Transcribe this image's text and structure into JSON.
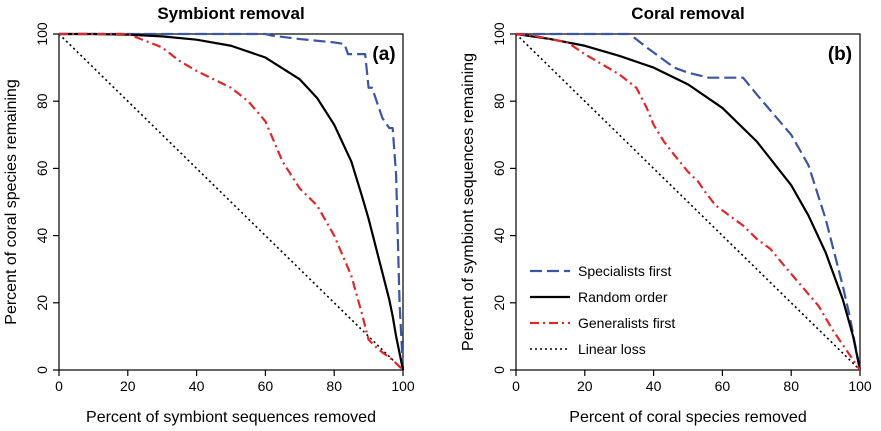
{
  "chart_data": [
    {
      "type": "line",
      "title": "Symbiont removal",
      "panel_label": "(a)",
      "xlabel": "Percent of symbiont sequences removed",
      "ylabel": "Percent of coral species remaining",
      "xlim": [
        0,
        100
      ],
      "ylim": [
        0,
        100
      ],
      "xticks": [
        0,
        20,
        40,
        60,
        80,
        100
      ],
      "yticks": [
        0,
        20,
        40,
        60,
        80,
        100
      ],
      "grid": false,
      "legend": null,
      "series": [
        {
          "name": "Specialists first",
          "color": "#3a56a5",
          "dash": "long-dash",
          "x": [
            0,
            20,
            40,
            60,
            62,
            70,
            75,
            80,
            83,
            84,
            85,
            89,
            90,
            91,
            94,
            96,
            97,
            98,
            99,
            100
          ],
          "y": [
            100,
            100,
            100,
            100,
            99.5,
            98.5,
            98,
            97.5,
            97,
            94,
            94,
            94,
            84,
            84,
            75,
            72,
            72,
            58,
            20,
            0
          ]
        },
        {
          "name": "Random order",
          "color": "#000000",
          "dash": "solid",
          "x": [
            0,
            10,
            20,
            30,
            40,
            50,
            60,
            70,
            75,
            80,
            85,
            88,
            90,
            92,
            94,
            96,
            97,
            98,
            99,
            100
          ],
          "y": [
            100,
            100,
            99.8,
            99.3,
            98.3,
            96.5,
            93,
            86.5,
            81,
            73,
            62,
            52,
            45,
            37,
            29,
            21,
            16,
            10,
            5,
            0
          ]
        },
        {
          "name": "Generalists first",
          "color": "#e0282a",
          "dash": "dash-dot",
          "x": [
            0,
            20,
            25,
            30,
            35,
            40,
            45,
            50,
            55,
            60,
            65,
            70,
            75,
            80,
            85,
            88,
            90,
            93,
            97,
            100
          ],
          "y": [
            100,
            100,
            98,
            96,
            92,
            89,
            86.5,
            84,
            80,
            74,
            62,
            54,
            49,
            40,
            28,
            17,
            9,
            6,
            3,
            0
          ]
        },
        {
          "name": "Linear loss",
          "color": "#000000",
          "dash": "dotted",
          "x": [
            0,
            100
          ],
          "y": [
            100,
            0
          ]
        }
      ]
    },
    {
      "type": "line",
      "title": "Coral removal",
      "panel_label": "(b)",
      "xlabel": "Percent of coral species removed",
      "ylabel": "Percent of symbiont sequences remaining",
      "xlim": [
        0,
        100
      ],
      "ylim": [
        0,
        100
      ],
      "xticks": [
        0,
        20,
        40,
        60,
        80,
        100
      ],
      "yticks": [
        0,
        20,
        40,
        60,
        80,
        100
      ],
      "grid": false,
      "legend": "bottom-left",
      "series": [
        {
          "name": "Specialists first",
          "color": "#3a56a5",
          "dash": "long-dash",
          "x": [
            0,
            10,
            20,
            33,
            38,
            42,
            46,
            50,
            56,
            60,
            66,
            70,
            75,
            80,
            85,
            90,
            95,
            97,
            100
          ],
          "y": [
            100,
            100,
            100,
            100,
            96,
            93,
            90,
            88.5,
            87,
            87,
            87,
            82,
            76,
            70,
            61,
            45,
            25,
            16,
            0
          ]
        },
        {
          "name": "Random order",
          "color": "#000000",
          "dash": "solid",
          "x": [
            0,
            10,
            20,
            30,
            40,
            50,
            60,
            70,
            80,
            85,
            90,
            95,
            98,
            100
          ],
          "y": [
            100,
            98.5,
            96.5,
            93.5,
            90,
            85,
            78,
            68,
            55,
            46,
            35,
            21,
            10,
            0
          ]
        },
        {
          "name": "Generalists first",
          "color": "#e0282a",
          "dash": "dash-dot",
          "x": [
            0,
            5,
            10,
            15,
            20,
            25,
            30,
            35,
            38,
            40,
            43,
            46,
            50,
            53,
            55,
            58,
            62,
            66,
            70,
            74,
            78,
            83,
            88,
            92,
            96,
            100
          ],
          "y": [
            100,
            99.5,
            98.5,
            97.5,
            94,
            91,
            88,
            84,
            78,
            73,
            68,
            64,
            59,
            56,
            53,
            49,
            46,
            43,
            39,
            36,
            31,
            25,
            19,
            12,
            6,
            0
          ]
        },
        {
          "name": "Linear loss",
          "color": "#000000",
          "dash": "dotted",
          "x": [
            0,
            100
          ],
          "y": [
            100,
            0
          ]
        }
      ]
    }
  ]
}
